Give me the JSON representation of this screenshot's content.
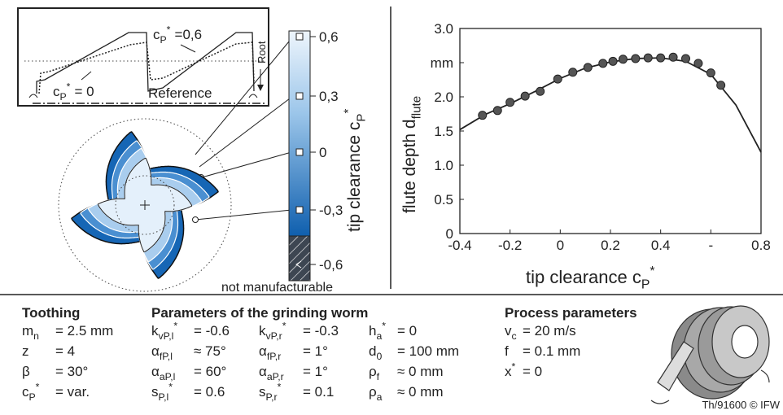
{
  "chart_data": {
    "type": "line",
    "xlabel": {
      "sym": "tip clearance c",
      "sub": "P",
      "sup": "*"
    },
    "ylabel": {
      "sym": "flute depth d",
      "sub": "flute"
    },
    "xlim": [
      -0.4,
      0.8
    ],
    "xticks": [
      -0.4,
      -0.2,
      0,
      0.2,
      0.4,
      {
        "value": 0.6,
        "label": "-"
      },
      0.8
    ],
    "ylim": [
      0,
      3
    ],
    "yticks": [
      0,
      0.5,
      {
        "value": 1,
        "label": "1.0"
      },
      1.5,
      {
        "value": 2,
        "label": "2.0"
      },
      {
        "value": 2.5,
        "label": "mm"
      },
      {
        "value": 3,
        "label": "3.0"
      }
    ],
    "series": [
      {
        "type": "line",
        "color": "#222222",
        "x": [
          -0.4,
          -0.3,
          -0.2,
          -0.1,
          0,
          0.1,
          0.2,
          0.3,
          0.4,
          0.5,
          0.6,
          0.7,
          0.8
        ],
        "values": [
          1.52,
          1.74,
          1.9,
          2.08,
          2.27,
          2.42,
          2.51,
          2.56,
          2.57,
          2.52,
          2.33,
          1.88,
          1.19
        ]
      },
      {
        "type": "scatter",
        "color": "#555555",
        "x": [
          -0.31,
          -0.25,
          -0.2,
          -0.14,
          -0.08,
          -0.01,
          0.05,
          0.11,
          0.17,
          0.21,
          0.25,
          0.3,
          0.35,
          0.4,
          0.45,
          0.5,
          0.55,
          0.6,
          0.64
        ],
        "values": [
          1.73,
          1.8,
          1.92,
          2.01,
          2.08,
          2.26,
          2.36,
          2.43,
          2.49,
          2.52,
          2.55,
          2.56,
          2.57,
          2.57,
          2.58,
          2.56,
          2.49,
          2.35,
          2.17
        ]
      }
    ]
  },
  "diagram": {
    "profile": {
      "label_top": {
        "sym": "c",
        "sub": "P",
        "sup": "*",
        "val": "=0,6"
      },
      "label_zero": {
        "sym": "c",
        "sub": "P",
        "sup": "*",
        "val": "= 0"
      },
      "root": "Root",
      "reference": "Reference"
    },
    "colorbar": {
      "title": {
        "sym": "tip clearance c",
        "sub": "P",
        "sup": "*"
      },
      "labels": [
        "0,6",
        "0,3",
        "0",
        "-0,3",
        "-0,6"
      ],
      "note": "not manufacturable"
    }
  },
  "params": {
    "toothing": {
      "title": "Toothing",
      "items": [
        {
          "sym": "m",
          "sub": "n",
          "val": "= 2.5 mm"
        },
        {
          "sym": "z",
          "val": "= 4"
        },
        {
          "sym": "β",
          "val": "= 30°"
        },
        {
          "sym": "c",
          "sub": "P",
          "sup": "*",
          "val": "= var."
        }
      ]
    },
    "worm": {
      "title": "Parameters of the grinding worm",
      "columns": [
        [
          {
            "sym": "k",
            "sub": "vP,l",
            "sup": "*",
            "val": "= -0.6"
          },
          {
            "sym": "α",
            "sub": "fP,l",
            "val": "≈ 75°"
          },
          {
            "sym": "α",
            "sub": "aP,l",
            "val": "= 60°"
          },
          {
            "sym": "s",
            "sub": "P,l",
            "sup": "*",
            "val": "= 0.6"
          }
        ],
        [
          {
            "sym": "k",
            "sub": "vP,r",
            "sup": "*",
            "val": "= -0.3"
          },
          {
            "sym": "α",
            "sub": "fP,r",
            "val": "= 1°"
          },
          {
            "sym": "α",
            "sub": "aP,r",
            "val": "= 1°"
          },
          {
            "sym": "s",
            "sub": "P,r",
            "sup": "*",
            "val": "= 0.1"
          }
        ],
        [
          {
            "sym": "h",
            "sub": "a",
            "sup": "*",
            "val": "= 0"
          },
          {
            "sym": "d",
            "sub": "0",
            "val": "= 100 mm"
          },
          {
            "sym": "ρ",
            "sub": "f",
            "val": "≈ 0 mm"
          },
          {
            "sym": "ρ",
            "sub": "a",
            "val": "≈ 0 mm"
          }
        ]
      ]
    },
    "process": {
      "title": "Process parameters",
      "items": [
        {
          "sym": "v",
          "sub": "c",
          "val": "= 20 m/s"
        },
        {
          "sym": "f",
          "val": "= 0.1 mm"
        },
        {
          "sym": "x",
          "sup": "*",
          "val": "= 0"
        }
      ]
    }
  },
  "footer": "Th/91600 © IFW"
}
